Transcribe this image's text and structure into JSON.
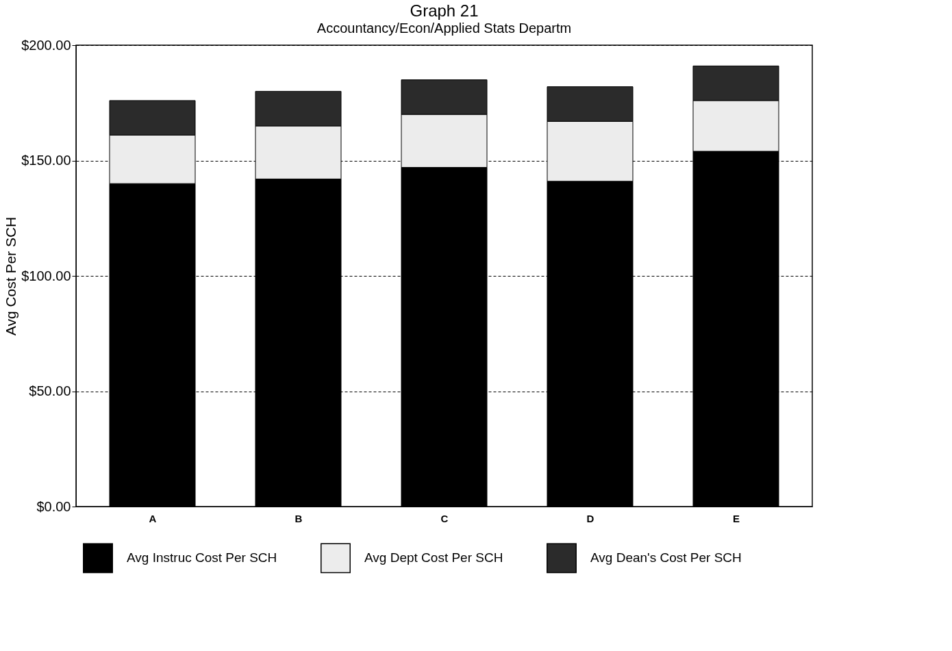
{
  "chart_data": {
    "type": "bar",
    "stacked": true,
    "title": "Graph 21",
    "subtitle": "Accountancy/Econ/Applied Stats Departm",
    "ylabel": "Avg Cost Per SCH",
    "categories": [
      "A",
      "B",
      "C",
      "D",
      "E"
    ],
    "series": [
      {
        "name": "Avg Instruc Cost Per SCH",
        "color": "#000000",
        "values": [
          140,
          142,
          147,
          141,
          154
        ]
      },
      {
        "name": "Avg Dept Cost Per SCH",
        "color": "#ececec",
        "values": [
          21,
          23,
          23,
          26,
          22
        ]
      },
      {
        "name": "Avg Dean's Cost Per SCH",
        "color": "#2b2b2b",
        "values": [
          15,
          15,
          15,
          15,
          15
        ]
      }
    ],
    "ylim": [
      0,
      200
    ],
    "yticks": [
      {
        "value": 0,
        "label": "$0.00"
      },
      {
        "value": 50,
        "label": "$50.00"
      },
      {
        "value": 100,
        "label": "$100.00"
      },
      {
        "value": 150,
        "label": "$150.00"
      },
      {
        "value": 200,
        "label": "$200.00"
      }
    ],
    "grid": "y",
    "legend": "bottom"
  }
}
